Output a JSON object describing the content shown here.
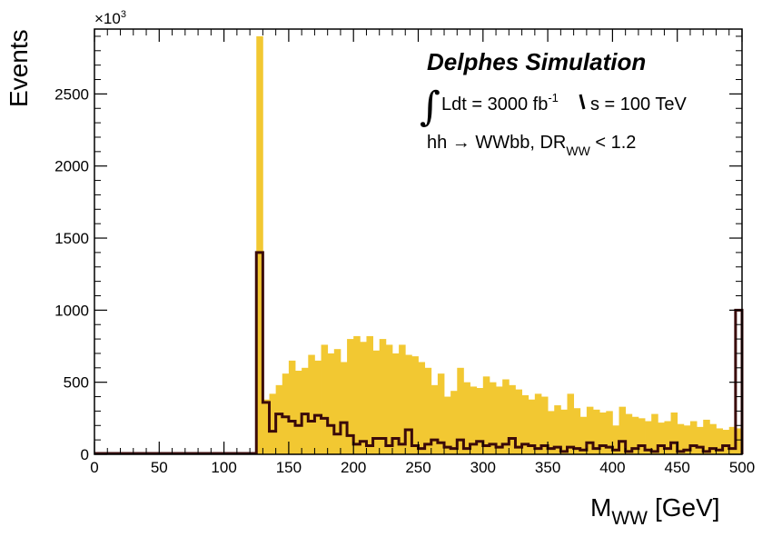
{
  "chart_data": {
    "type": "bar",
    "xlabel": "M",
    "xlabel_sub": "WW",
    "xlabel_unit": "[GeV]",
    "ylabel": "Events",
    "y_multiplier": "×10",
    "y_multiplier_exp": "3",
    "xlim": [
      0,
      500
    ],
    "ylim": [
      0,
      2950
    ],
    "x_ticks": [
      0,
      50,
      100,
      150,
      200,
      250,
      300,
      350,
      400,
      450,
      500
    ],
    "y_ticks": [
      0,
      500,
      1000,
      1500,
      2000,
      2500
    ],
    "grid": false,
    "bin_width": 5,
    "bin_edges": [
      125,
      130,
      135,
      140,
      145,
      150,
      155,
      160,
      165,
      170,
      175,
      180,
      185,
      190,
      195,
      200,
      205,
      210,
      215,
      220,
      225,
      230,
      235,
      240,
      245,
      250,
      255,
      260,
      265,
      270,
      275,
      280,
      285,
      290,
      295,
      300,
      305,
      310,
      315,
      320,
      325,
      330,
      335,
      340,
      345,
      350,
      355,
      360,
      365,
      370,
      375,
      380,
      385,
      390,
      395,
      400,
      405,
      410,
      415,
      420,
      425,
      430,
      435,
      440,
      445,
      450,
      455,
      460,
      465,
      470,
      475,
      480,
      485,
      490,
      495,
      500
    ],
    "series": [
      {
        "style": "filled",
        "color": "#f2c832",
        "values": [
          2900,
          380,
          420,
          480,
          560,
          650,
          580,
          600,
          690,
          650,
          760,
          700,
          730,
          640,
          800,
          820,
          780,
          820,
          720,
          800,
          760,
          700,
          760,
          690,
          680,
          640,
          600,
          480,
          560,
          400,
          440,
          600,
          500,
          470,
          460,
          540,
          500,
          470,
          520,
          480,
          450,
          410,
          380,
          420,
          400,
          300,
          340,
          310,
          420,
          320,
          260,
          330,
          310,
          290,
          300,
          200,
          330,
          280,
          260,
          250,
          230,
          280,
          220,
          230,
          290,
          210,
          200,
          230,
          190,
          240,
          210,
          180,
          170,
          190,
          180
        ]
      },
      {
        "style": "outline",
        "color": "#3a0a0a",
        "values": [
          1400,
          360,
          160,
          280,
          260,
          230,
          200,
          280,
          230,
          270,
          250,
          200,
          140,
          220,
          130,
          70,
          90,
          60,
          110,
          110,
          60,
          110,
          70,
          170,
          60,
          40,
          70,
          100,
          80,
          50,
          40,
          100,
          40,
          70,
          90,
          60,
          70,
          50,
          70,
          110,
          50,
          70,
          60,
          40,
          60,
          40,
          50,
          20,
          50,
          40,
          30,
          80,
          40,
          60,
          50,
          30,
          90,
          20,
          40,
          60,
          30,
          20,
          60,
          40,
          80,
          20,
          30,
          60,
          50,
          20,
          40,
          30,
          60,
          40,
          1000
        ]
      }
    ]
  },
  "annotations": {
    "title": "Delphes Simulation",
    "lumi_integral": "∫",
    "lumi_text": "Ldt = 3000 fb",
    "lumi_exp": "-1",
    "energy_text": "s = 100 TeV",
    "process_text": "hh →  WWbb, DR",
    "process_sub": "WW",
    "process_cut": " < 1.2"
  }
}
